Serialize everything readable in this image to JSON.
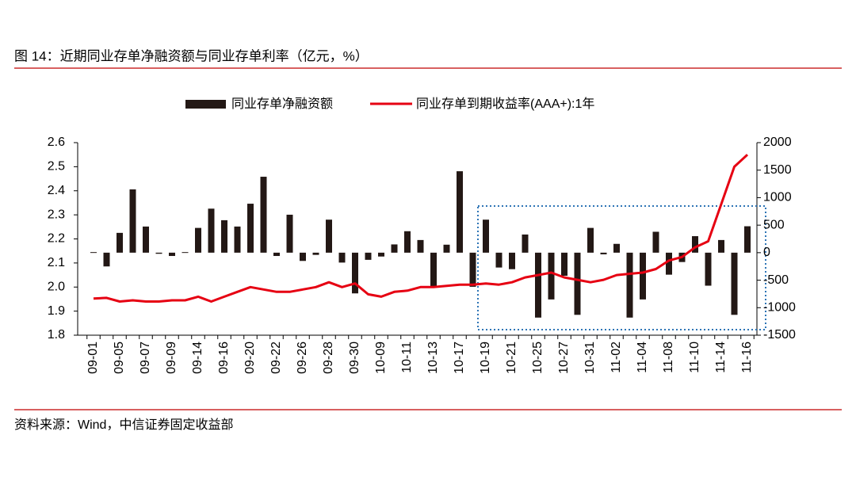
{
  "chart_data": {
    "type": "bar",
    "title": "图 14：近期同业存单净融资额与同业存单利率（亿元，%）",
    "source": "资料来源：Wind，中信证券固定收益部",
    "categories": [
      "09-01",
      null,
      "09-05",
      null,
      "09-07",
      null,
      "09-09",
      null,
      "09-14",
      null,
      "09-16",
      null,
      "09-20",
      null,
      "09-22",
      null,
      "09-26",
      null,
      "09-28",
      null,
      "09-30",
      null,
      "10-09",
      null,
      "10-11",
      null,
      "10-13",
      null,
      "10-17",
      null,
      "10-19",
      null,
      "10-21",
      null,
      "10-25",
      null,
      "10-27",
      null,
      "10-31",
      null,
      "11-02",
      null,
      "11-04",
      null,
      "11-08",
      null,
      "11-10",
      null,
      "11-14",
      null,
      "11-16"
    ],
    "series": [
      {
        "name": "同业存单净融资额",
        "type": "bar",
        "axis": "y2",
        "color": "#231815",
        "values": [
          10,
          -250,
          360,
          1150,
          475,
          -20,
          -60,
          10,
          450,
          800,
          590,
          475,
          890,
          1380,
          -60,
          690,
          -150,
          -40,
          600,
          -180,
          -740,
          -130,
          -70,
          150,
          390,
          230,
          -620,
          145,
          1480,
          -620,
          600,
          -270,
          -300,
          330,
          -1180,
          -850,
          -420,
          -1130,
          450,
          -30,
          160,
          -1180,
          -850,
          380,
          -400,
          -170,
          300,
          -600,
          230,
          -1130,
          480
        ]
      },
      {
        "name": "同业存单到期收益率(AAA+):1年",
        "type": "line",
        "axis": "y",
        "color": "#e60012",
        "values": [
          1.952,
          1.955,
          1.94,
          1.945,
          1.94,
          1.94,
          1.945,
          1.945,
          1.96,
          1.94,
          1.96,
          1.98,
          2.0,
          1.99,
          1.98,
          1.98,
          1.99,
          2.0,
          2.02,
          2.0,
          2.015,
          1.97,
          1.96,
          1.98,
          1.985,
          2.0,
          2.0,
          2.005,
          2.01,
          2.01,
          2.015,
          2.01,
          2.02,
          2.04,
          2.05,
          2.06,
          2.04,
          2.03,
          2.02,
          2.03,
          2.05,
          2.055,
          2.06,
          2.075,
          2.11,
          2.125,
          2.165,
          2.19,
          2.345,
          2.5,
          2.55
        ]
      }
    ],
    "ylim": [
      1.8,
      2.6
    ],
    "yticks": [
      1.8,
      1.9,
      {
        "value": 2,
        "label": "2.0"
      },
      2.1,
      2.2,
      2.3,
      2.4,
      2.5,
      2.6
    ],
    "y2lim": [
      -1500,
      2000
    ],
    "y2ticks": [
      -1500,
      -1000,
      -500,
      0,
      500,
      1000,
      1500,
      2000
    ],
    "legend": "top"
  }
}
